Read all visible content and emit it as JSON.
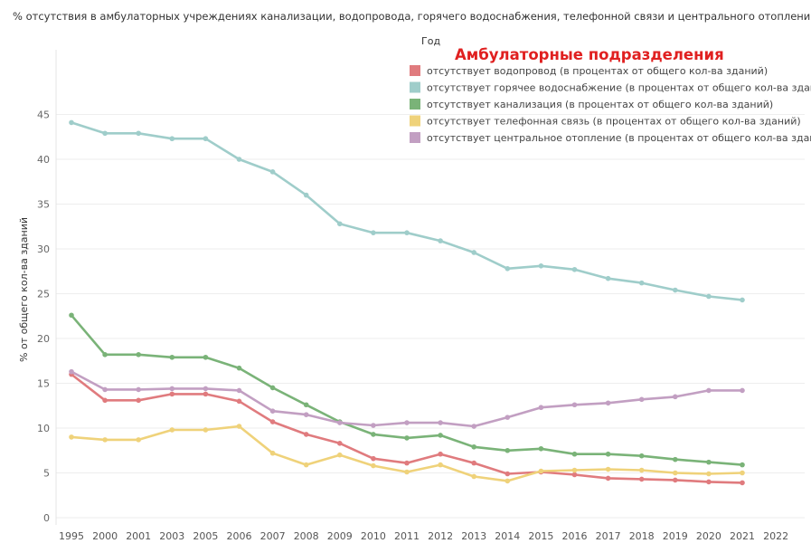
{
  "page_title": "% отсутствия в амбулаторных учреждениях канализации, водопровода, горячего водоснабжения, телефонной связи и центрального отопления",
  "chart_data": {
    "type": "line",
    "title": "Амбулаторные подразделения",
    "legend_title": "Год",
    "xlabel": "",
    "ylabel": "% от общего кол-ва зданий",
    "ylim": [
      0,
      45
    ],
    "yticks": [
      0,
      5,
      10,
      15,
      20,
      25,
      30,
      35,
      40,
      45
    ],
    "grid": "horizontal",
    "legend_position": "top-right",
    "x": [
      "1995",
      "2000",
      "2001",
      "2003",
      "2005",
      "2006",
      "2007",
      "2008",
      "2009",
      "2010",
      "2011",
      "2012",
      "2013",
      "2014",
      "2015",
      "2016",
      "2017",
      "2018",
      "2019",
      "2020",
      "2021",
      "2022"
    ],
    "series": [
      {
        "name": "отсутствует водопровод (в процентах от общего кол-ва зданий)",
        "color": "#e07b7e",
        "values": [
          16.0,
          13.1,
          13.1,
          13.8,
          13.8,
          13.0,
          10.7,
          9.3,
          8.3,
          6.6,
          6.1,
          7.1,
          6.1,
          4.9,
          5.1,
          4.8,
          4.4,
          4.3,
          4.2,
          4.0,
          3.9,
          null
        ]
      },
      {
        "name": "отсутствует горячее водоснабжение (в процентах от общего кол-ва зданий)",
        "color": "#9fcdca",
        "values": [
          44.1,
          42.9,
          42.9,
          42.3,
          42.3,
          40.0,
          38.6,
          36.0,
          32.8,
          31.8,
          31.8,
          30.9,
          29.6,
          27.8,
          28.1,
          27.7,
          26.7,
          26.2,
          25.4,
          24.7,
          24.3,
          null
        ]
      },
      {
        "name": "отсутствует канализация (в процентах от общего кол-ва зданий)",
        "color": "#7ab378",
        "values": [
          22.6,
          18.2,
          18.2,
          17.9,
          17.9,
          16.7,
          14.5,
          12.6,
          10.7,
          9.3,
          8.9,
          9.2,
          7.9,
          7.5,
          7.7,
          7.1,
          7.1,
          6.9,
          6.5,
          6.2,
          5.9,
          null
        ]
      },
      {
        "name": "отсутствует телефонная связь (в процентах от общего кол-ва зданий)",
        "color": "#efd27a",
        "values": [
          9.0,
          8.7,
          8.7,
          9.8,
          9.8,
          10.2,
          7.2,
          5.9,
          7.0,
          5.8,
          5.1,
          5.9,
          4.6,
          4.1,
          5.2,
          5.3,
          5.4,
          5.3,
          5.0,
          4.9,
          5.0,
          null
        ]
      },
      {
        "name": "отсутствует центральное отопление (в процентах от общего кол-ва зданий)",
        "color": "#c29fc2",
        "values": [
          16.3,
          14.3,
          14.3,
          14.4,
          14.4,
          14.2,
          11.9,
          11.5,
          10.6,
          10.3,
          10.6,
          10.6,
          10.2,
          11.2,
          12.3,
          12.6,
          12.8,
          13.2,
          13.5,
          14.2,
          14.2,
          null
        ]
      }
    ]
  }
}
